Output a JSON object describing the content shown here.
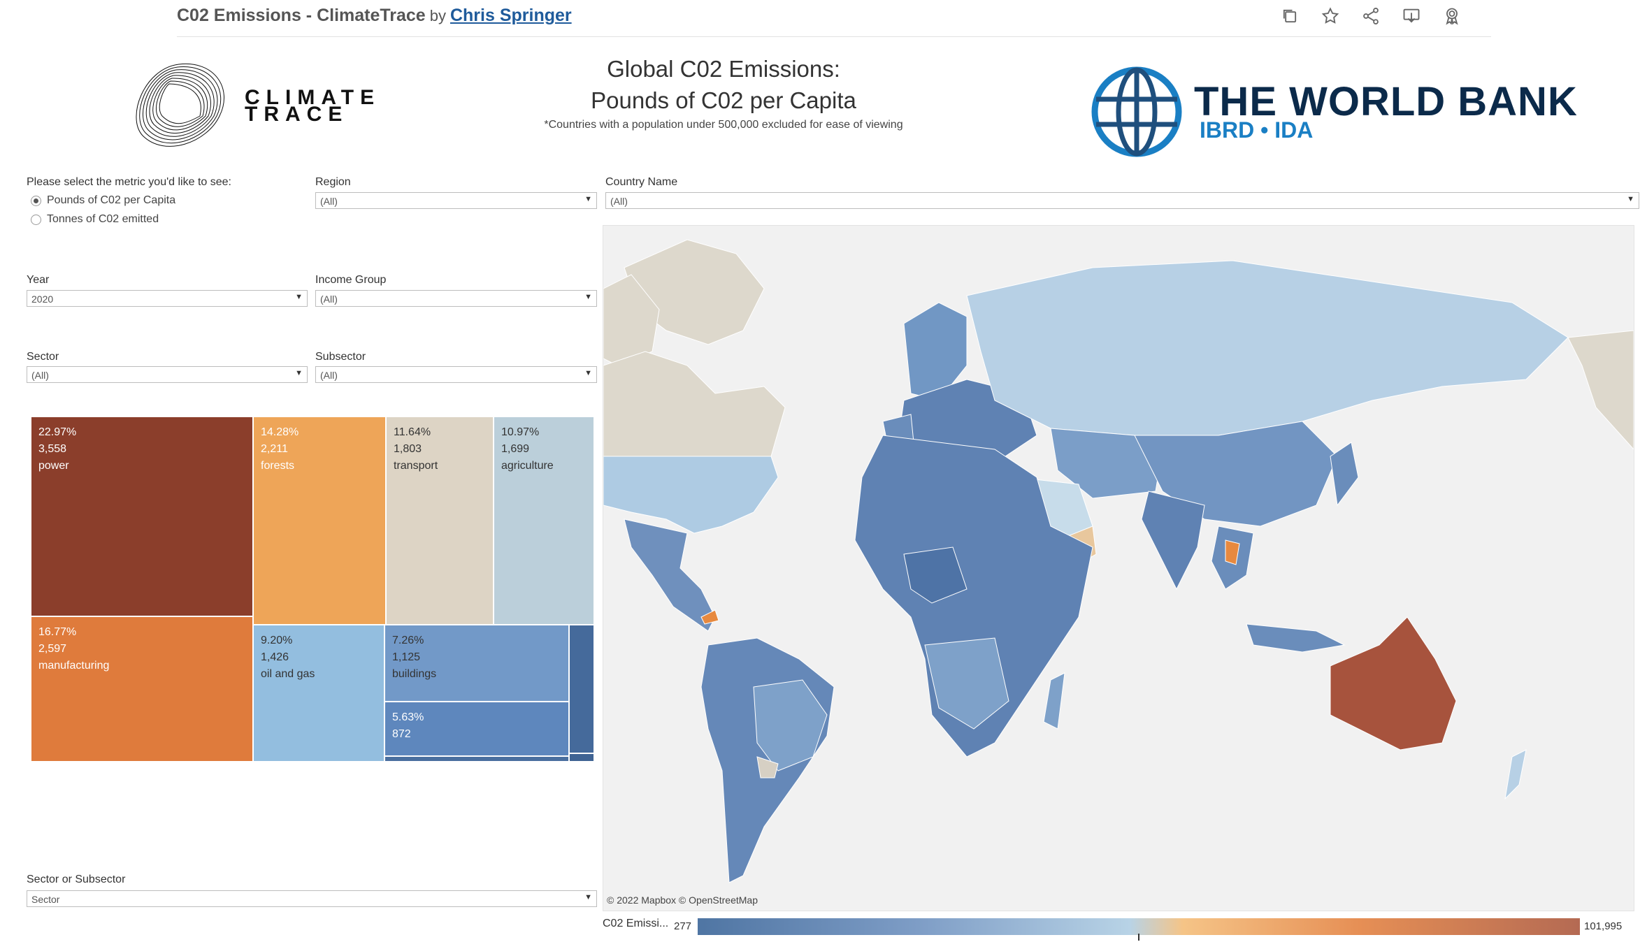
{
  "header": {
    "title": "C02 Emissions - ClimateTrace",
    "by": "by",
    "author": "Chris Springer",
    "icons": [
      "duplicate-icon",
      "favorite-star-icon",
      "share-icon",
      "download-icon",
      "view-badge-icon"
    ]
  },
  "dashboard": {
    "title_line1": "Global C02 Emissions:",
    "title_line2": "Pounds of C02 per Capita",
    "note": "*Countries with a population under 500,000 excluded for ease of viewing",
    "climate_trace_logo": "CLIMATE TRACE",
    "world_bank_logo": {
      "title": "THE WORLD BANK",
      "subtitle": "IBRD • IDA"
    }
  },
  "filters": {
    "metric": {
      "label": "Please select the metric you'd like to see:",
      "options": [
        "Pounds of C02 per Capita",
        "Tonnes of C02 emitted"
      ],
      "selected": 0
    },
    "region": {
      "label": "Region",
      "value": "(All)"
    },
    "country": {
      "label": "Country Name",
      "value": "(All)"
    },
    "year": {
      "label": "Year",
      "value": "2020"
    },
    "income": {
      "label": "Income Group",
      "value": "(All)"
    },
    "sector": {
      "label": "Sector",
      "value": "(All)"
    },
    "subsector": {
      "label": "Subsector",
      "value": "(All)"
    },
    "sector_or_subsector": {
      "label": "Sector or Subsector",
      "value": "Sector"
    }
  },
  "treemap": [
    {
      "pct": "22.97%",
      "value": "3,558",
      "name": "power",
      "color": "#8b3e2b"
    },
    {
      "pct": "14.28%",
      "value": "2,211",
      "name": "forests",
      "color": "#eea558"
    },
    {
      "pct": "11.64%",
      "value": "1,803",
      "name": "transport",
      "color": "#ddd4c5"
    },
    {
      "pct": "10.97%",
      "value": "1,699",
      "name": "agriculture",
      "color": "#bbcfda"
    },
    {
      "pct": "16.77%",
      "value": "2,597",
      "name": "manufacturing",
      "color": "#df7b3c"
    },
    {
      "pct": "9.20%",
      "value": "1,426",
      "name": "oil and gas",
      "color": "#93bedf"
    },
    {
      "pct": "7.26%",
      "value": "1,125",
      "name": "buildings",
      "color": "#7299c8"
    },
    {
      "pct": "5.63%",
      "value": "872",
      "name": "",
      "color": "#5e87bd"
    },
    {
      "pct": "",
      "value": "",
      "name": "",
      "color": "#456a9b"
    },
    {
      "pct": "",
      "value": "",
      "name": "",
      "color": "#4a6f9f"
    }
  ],
  "map": {
    "attribution": "© 2022 Mapbox  © OpenStreetMap",
    "colors": {
      "ocean": "#f1f1f1",
      "no_data": "#ddd8cc",
      "low": "#5f82b3",
      "mid": "#b7d0e5",
      "high": "#a7533d",
      "orange": "#e7893f"
    }
  },
  "legend": {
    "label": "C02 Emissi...",
    "min": "277",
    "max": "101,995"
  }
}
